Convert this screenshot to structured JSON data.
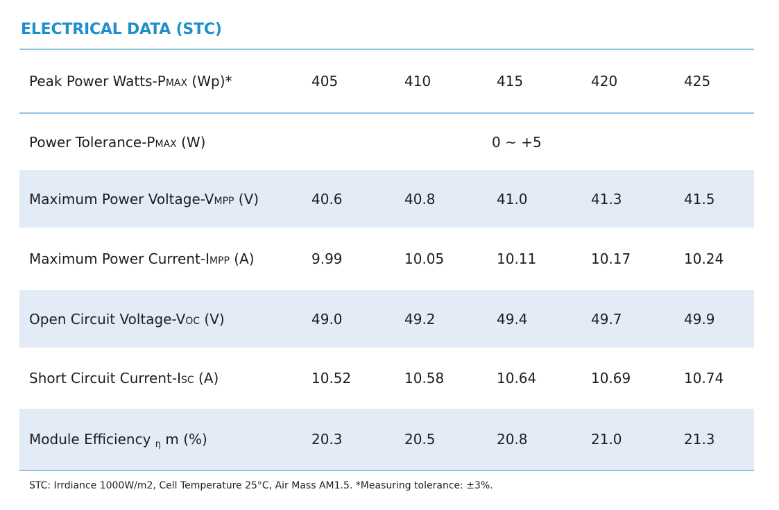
{
  "title": "ELECTRICAL DATA (STC)",
  "rows": [
    {
      "label_pre": "Peak Power Watts-P",
      "label_sub": "MAX",
      "label_post": " (Wp)*",
      "values": [
        "405",
        "410",
        "415",
        "420",
        "425"
      ]
    },
    {
      "label_pre": "Power Tolerance-P",
      "label_sub": "MAX",
      "label_post": " (W)",
      "value": "0 ~ +5"
    },
    {
      "label_pre": "Maximum Power Voltage-V",
      "label_sub": "MPP",
      "label_post": " (V)",
      "values": [
        "40.6",
        "40.8",
        "41.0",
        "41.3",
        "41.5"
      ]
    },
    {
      "label_pre": "Maximum Power Current-I",
      "label_sub": "MPP",
      "label_post": " (A)",
      "values": [
        "9.99",
        "10.05",
        "10.11",
        "10.17",
        "10.24"
      ]
    },
    {
      "label_pre": "Open Circuit Voltage-V",
      "label_sub": "OC",
      "label_post": " (V)",
      "values": [
        "49.0",
        "49.2",
        "49.4",
        "49.7",
        "49.9"
      ]
    },
    {
      "label_pre": "Short Circuit Current-I",
      "label_sub": "SC",
      "label_post": " (A)",
      "values": [
        "10.52",
        "10.58",
        "10.64",
        "10.69",
        "10.74"
      ]
    },
    {
      "label_pre": "Module Efficiency ",
      "label_sub": "η",
      "label_post": " m (%)",
      "values": [
        "20.3",
        "20.5",
        "20.8",
        "21.0",
        "21.3"
      ]
    }
  ],
  "footnote": "STC: Irrdiance 1000W/m2, Cell Temperature 25°C, Air Mass AM1.5.   *Measuring tolerance: ±3%."
}
